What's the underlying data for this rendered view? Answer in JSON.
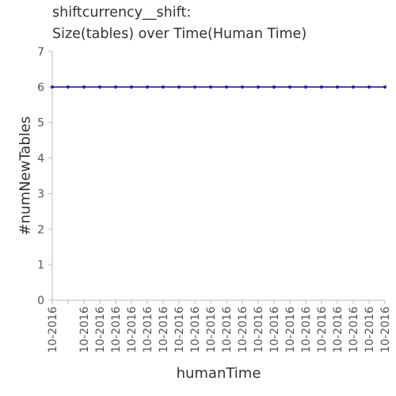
{
  "chart_data": {
    "type": "line",
    "title": "shiftcurrency__shift:",
    "subtitle": "Size(tables) over Time(Human Time)",
    "xlabel": "humanTime",
    "ylabel": "#numNewTables",
    "ylim": [
      0,
      7
    ],
    "yticks": [
      0,
      1,
      2,
      3,
      4,
      5,
      6,
      7
    ],
    "categories": [
      "10-2016",
      "",
      "10-2016",
      "10-2016",
      "10-2016",
      "10-2016",
      "10-2016",
      "10-2016",
      "10-2016",
      "10-2016",
      "10-2016",
      "10-2016",
      "10-2016",
      "10-2016",
      "10-2016",
      "10-2016",
      "10-2016",
      "10-2016",
      "10-2016",
      "10-2016",
      "10-2016",
      "10-2016"
    ],
    "series": [
      {
        "values": [
          6,
          6,
          6,
          6,
          6,
          6,
          6,
          6,
          6,
          6,
          6,
          6,
          6,
          6,
          6,
          6,
          6,
          6,
          6,
          6,
          6,
          6
        ]
      }
    ],
    "grid": false,
    "legend": "none",
    "colors": {
      "line": "#1a1acc",
      "axis": "#bbbbbb",
      "text": "#333333",
      "tick_label": "#555555"
    }
  }
}
